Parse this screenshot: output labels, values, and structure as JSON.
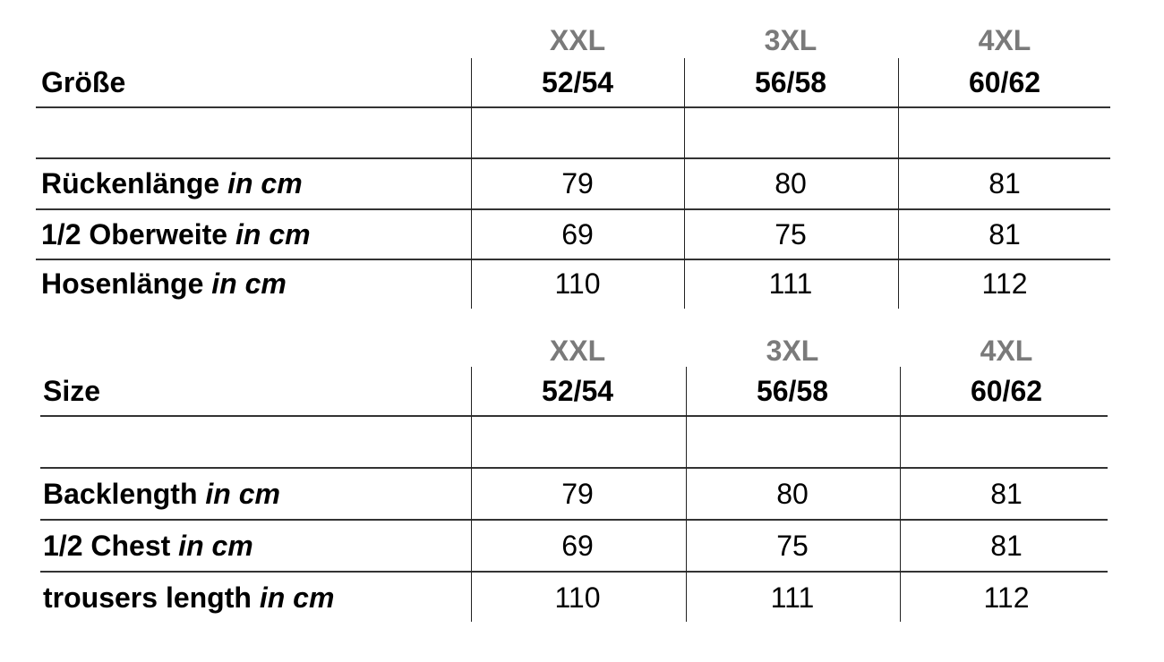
{
  "tables": [
    {
      "header_label": "Größe",
      "columns": [
        {
          "size": "XXL",
          "range": "52/54"
        },
        {
          "size": "3XL",
          "range": "56/58"
        },
        {
          "size": "4XL",
          "range": "60/62"
        }
      ],
      "rows": [
        {
          "label": "Rückenlänge",
          "unit": "in cm",
          "values": [
            "79",
            "80",
            "81"
          ]
        },
        {
          "label": "1/2 Oberweite",
          "unit": "in cm",
          "values": [
            "69",
            "75",
            "81"
          ]
        },
        {
          "label": "Hosenlänge",
          "unit": "in cm",
          "values": [
            "110",
            "111",
            "112"
          ]
        }
      ]
    },
    {
      "header_label": "Size",
      "columns": [
        {
          "size": "XXL",
          "range": "52/54"
        },
        {
          "size": "3XL",
          "range": "56/58"
        },
        {
          "size": "4XL",
          "range": "60/62"
        }
      ],
      "rows": [
        {
          "label": "Backlength",
          "unit": "in cm",
          "values": [
            "79",
            "80",
            "81"
          ]
        },
        {
          "label": "1/2 Chest",
          "unit": "in cm",
          "values": [
            "69",
            "75",
            "81"
          ]
        },
        {
          "label": "trousers length",
          "unit": "in cm",
          "values": [
            "110",
            "111",
            "112"
          ]
        }
      ]
    }
  ],
  "colors": {
    "size_label": "#7a7a7a",
    "text": "#000000",
    "rule": "#333333"
  }
}
